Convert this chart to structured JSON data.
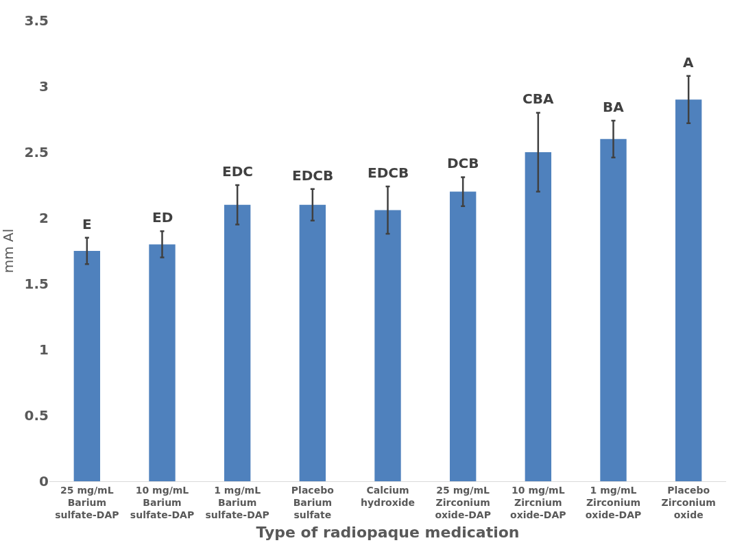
{
  "chart_data": {
    "type": "bar",
    "xlabel": "Type of radiopaque medication",
    "ylabel": "mm Al",
    "categories": [
      "25 mg/mL\nBarium\nsulfate-DAP",
      "10 mg/mL\nBarium\nsulfate-DAP",
      "1 mg/mL\nBarium\nsulfate-DAP",
      "Placebo\nBarium\nsulfate",
      "Calcium\nhydroxide",
      "25 mg/mL\nZirconium\noxide-DAP",
      "10 mg/mL\nZircnium\noxide-DAP",
      "1 mg/mL\nZirconium\noxide-DAP",
      "Placebo\nZirconium\noxide"
    ],
    "values": [
      1.75,
      1.8,
      2.1,
      2.1,
      2.06,
      2.2,
      2.5,
      2.6,
      2.9
    ],
    "errors": [
      0.1,
      0.1,
      0.15,
      0.12,
      0.18,
      0.11,
      0.3,
      0.14,
      0.18
    ],
    "color": "#4f81bd",
    "ylim": [
      0,
      3.5
    ],
    "yticks": [
      0,
      0.5,
      1,
      1.5,
      2,
      2.5,
      3,
      3.5
    ],
    "annotations": [
      {
        "text": "E",
        "x": "25 mg/mL\nBarium\nsulfate-DAP",
        "y": 1.85
      },
      {
        "text": "ED",
        "x": "10 mg/mL\nBarium\nsulfate-DAP",
        "y": 1.9
      },
      {
        "text": "EDC",
        "x": "1 mg/mL\nBarium\nsulfate-DAP",
        "y": 2.25
      },
      {
        "text": "EDCB",
        "x": "Placebo\nBarium\nsulfate",
        "y": 2.22
      },
      {
        "text": "EDCB",
        "x": "Calcium\nhydroxide",
        "y": 2.24
      },
      {
        "text": "DCB",
        "x": "25 mg/mL\nZirconium\noxide-DAP",
        "y": 2.31
      },
      {
        "text": "CBA",
        "x": "10 mg/mL\nZircnium\noxide-DAP",
        "y": 2.8
      },
      {
        "text": "BA",
        "x": "1 mg/mL\nZirconium\noxide-DAP",
        "y": 2.74
      },
      {
        "text": "A",
        "x": "Placebo\nZirconium\noxide",
        "y": 3.08
      }
    ]
  }
}
